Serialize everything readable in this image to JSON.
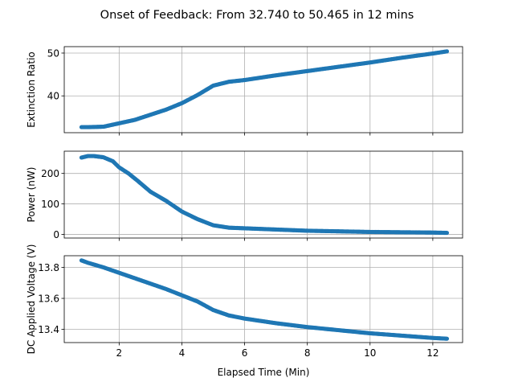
{
  "figure": {
    "title": "Onset of Feedback: From 32.740 to 50.465 in 12 mins",
    "xlabel": "Elapsed Time (Min)"
  },
  "colors": {
    "series": "#1f77b4",
    "grid": "#b0b0b0",
    "axis": "#000000",
    "background": "#ffffff"
  },
  "chart_data": [
    {
      "type": "scatter",
      "title": "Onset of Feedback: From 32.740 to 50.465 in 12 mins",
      "xlabel": "",
      "ylabel": "Extinction Ratio",
      "xlim": [
        0.25,
        12.95
      ],
      "ylim": [
        31.4,
        51.5
      ],
      "xticks": [
        2,
        4,
        6,
        8,
        10,
        12
      ],
      "yticks": [
        40,
        50
      ],
      "xtick_labels": [],
      "ytick_labels": [
        "40",
        "50"
      ],
      "grid": true,
      "series": [
        {
          "name": "Extinction Ratio",
          "x": [
            0.8,
            1.0,
            1.5,
            2.0,
            2.5,
            3.0,
            3.5,
            4.0,
            4.5,
            5.0,
            5.5,
            6.0,
            7.0,
            8.0,
            9.0,
            10.0,
            11.0,
            12.0,
            12.45
          ],
          "y": [
            32.7,
            32.7,
            32.8,
            33.6,
            34.4,
            35.6,
            36.8,
            38.3,
            40.2,
            42.4,
            43.3,
            43.7,
            44.8,
            45.8,
            46.8,
            47.8,
            48.9,
            49.9,
            50.4
          ]
        }
      ]
    },
    {
      "type": "scatter",
      "xlabel": "",
      "ylabel": "Power (nW)",
      "xlim": [
        0.25,
        12.95
      ],
      "ylim": [
        -12,
        273
      ],
      "xticks": [
        2,
        4,
        6,
        8,
        10,
        12
      ],
      "yticks": [
        0,
        100,
        200
      ],
      "xtick_labels": [],
      "ytick_labels": [
        "0",
        "100",
        "200"
      ],
      "grid": true,
      "series": [
        {
          "name": "Power",
          "x": [
            0.8,
            1.0,
            1.2,
            1.5,
            1.8,
            2.0,
            2.3,
            2.6,
            3.0,
            3.5,
            4.0,
            4.5,
            5.0,
            5.5,
            6.0,
            7.0,
            8.0,
            9.0,
            10.0,
            11.0,
            12.0,
            12.45
          ],
          "y": [
            252,
            257,
            257,
            253,
            240,
            220,
            200,
            175,
            140,
            110,
            75,
            50,
            30,
            22,
            20,
            16,
            12,
            10,
            8,
            7,
            6,
            5
          ]
        }
      ]
    },
    {
      "type": "scatter",
      "xlabel": "Elapsed Time (Min)",
      "ylabel": "DC Applied Voltage (V)",
      "xlim": [
        0.25,
        12.95
      ],
      "ylim": [
        13.315,
        13.875
      ],
      "xticks": [
        2,
        4,
        6,
        8,
        10,
        12
      ],
      "yticks": [
        13.4,
        13.6,
        13.8
      ],
      "xtick_labels": [
        "2",
        "4",
        "6",
        "8",
        "10",
        "12"
      ],
      "ytick_labels": [
        "13.4",
        "13.6",
        "13.8"
      ],
      "grid": true,
      "series": [
        {
          "name": "DC Applied Voltage",
          "x": [
            0.8,
            1.0,
            1.5,
            2.0,
            2.5,
            3.0,
            3.5,
            4.0,
            4.5,
            5.0,
            5.5,
            6.0,
            6.5,
            7.0,
            8.0,
            9.0,
            10.0,
            11.0,
            12.0,
            12.45
          ],
          "y": [
            13.845,
            13.83,
            13.8,
            13.765,
            13.73,
            13.695,
            13.66,
            13.62,
            13.58,
            13.525,
            13.49,
            13.47,
            13.455,
            13.44,
            13.415,
            13.395,
            13.375,
            13.36,
            13.345,
            13.34
          ]
        }
      ]
    }
  ]
}
